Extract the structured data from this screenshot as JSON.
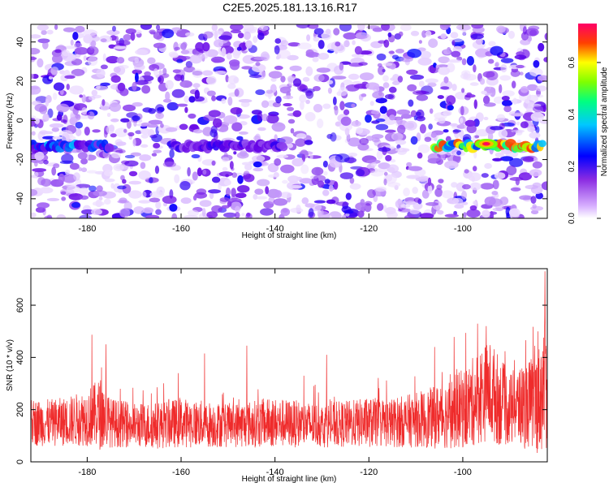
{
  "title": "C2E5.2025.181.13.16.R17",
  "colors": {
    "snr_line": "#ef2b2b",
    "axis": "#000000",
    "background": "#ffffff"
  },
  "chart_data": [
    {
      "type": "heatmap",
      "title": "C2E5.2025.181.13.16.R17",
      "xlabel": "Height of straight line (km)",
      "ylabel": "Frequency (Hz)",
      "xlim": [
        -192,
        -82
      ],
      "ylim": [
        -50,
        49
      ],
      "xticks": [
        -180,
        -160,
        -140,
        -120,
        -100
      ],
      "yticks": [
        -40,
        -20,
        0,
        20,
        40
      ],
      "colorbar": {
        "label": "Normalized spectral amplitude",
        "range": [
          0.0,
          0.75
        ],
        "ticks": [
          0.0,
          0.2,
          0.4,
          0.6
        ],
        "colormap": [
          "#ffffff",
          "#9b4dff",
          "#0000ff",
          "#00ffff",
          "#00ff00",
          "#ffff00",
          "#ff0000",
          "#ff0080"
        ]
      },
      "ridge": {
        "frequency": -13,
        "segments": [
          {
            "x_from": -192,
            "x_to": -175,
            "peak": 0.35
          },
          {
            "x_from": -162,
            "x_to": -138,
            "peak": 0.22
          },
          {
            "x_from": -106,
            "x_to": -83,
            "peak": 0.75
          }
        ],
        "peak_point": {
          "x": -95,
          "y": -12,
          "value": 0.75
        }
      },
      "noise_level": 0.05
    },
    {
      "type": "line",
      "xlabel": "Height of straight line (km)",
      "ylabel": "SNR (10 * v/v)",
      "xlim": [
        -192,
        -82
      ],
      "ylim": [
        0,
        740
      ],
      "xticks": [
        -180,
        -160,
        -140,
        -120,
        -100
      ],
      "yticks": [
        0,
        200,
        400,
        600
      ],
      "series": [
        {
          "x": [
            -192,
            -188,
            -184,
            -180,
            -177,
            -175,
            -170,
            -165,
            -160,
            -155,
            -150,
            -145,
            -140,
            -135,
            -130,
            -125,
            -120,
            -115,
            -110,
            -106,
            -102,
            -99,
            -96,
            -94,
            -92,
            -90,
            -88,
            -86,
            -84,
            -82.5
          ],
          "baseline": [
            150,
            150,
            155,
            170,
            185,
            150,
            140,
            140,
            150,
            145,
            140,
            145,
            150,
            145,
            140,
            145,
            150,
            150,
            160,
            170,
            190,
            210,
            260,
            270,
            230,
            200,
            210,
            220,
            230,
            300
          ],
          "spread": [
            90,
            90,
            95,
            110,
            140,
            95,
            85,
            90,
            95,
            90,
            85,
            90,
            95,
            90,
            85,
            90,
            95,
            95,
            105,
            120,
            140,
            160,
            190,
            195,
            170,
            140,
            160,
            170,
            200,
            260
          ],
          "peaks": [
            {
              "x": -179,
              "y": 487
            },
            {
              "x": -176,
              "y": 450
            },
            {
              "x": -155,
              "y": 415
            },
            {
              "x": -146,
              "y": 445
            },
            {
              "x": -129,
              "y": 410
            },
            {
              "x": -106,
              "y": 440
            },
            {
              "x": -95,
              "y": 520
            },
            {
              "x": -89,
              "y": 390
            },
            {
              "x": -84,
              "y": 500
            },
            {
              "x": -82.5,
              "y": 730
            }
          ]
        }
      ]
    }
  ]
}
